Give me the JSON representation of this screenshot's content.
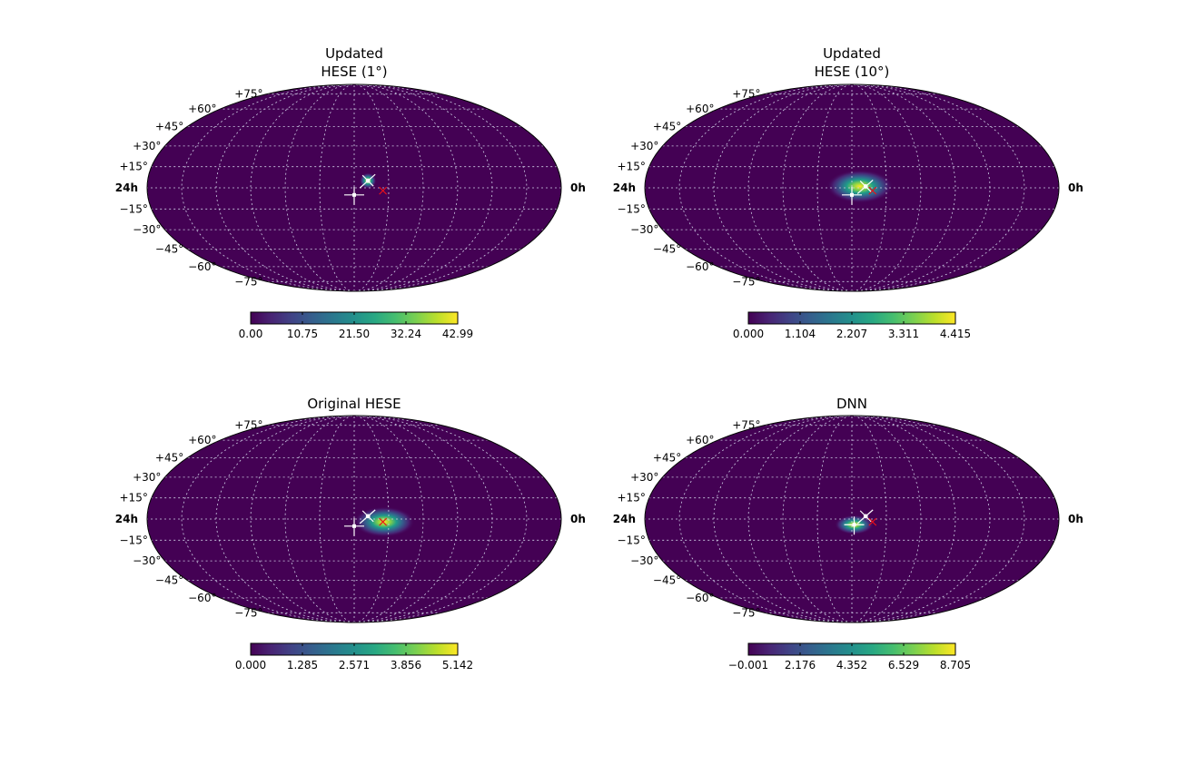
{
  "chart_data": [
    {
      "type": "heatmap",
      "projection": "mollweide",
      "title": [
        "Updated",
        "HESE (1°)"
      ],
      "colormap": "viridis",
      "colorbar": {
        "min": 0.0,
        "max": 42.99,
        "ticks": [
          "0.00",
          "10.75",
          "21.50",
          "32.24",
          "42.99"
        ]
      },
      "lat_ticks": [
        "+75°",
        "+60°",
        "+45°",
        "+30°",
        "+15°",
        "−15°",
        "−30°",
        "−45°",
        "−60°",
        "−75°"
      ],
      "ra_labels": {
        "left": "24h",
        "right": "0h"
      },
      "hotspot": {
        "ra_deg": 168,
        "dec_deg": 5,
        "sigma_deg": 1.5,
        "peak": 42.99
      },
      "markers": {
        "white_plus": {
          "ra_deg": 180,
          "dec_deg": -5
        },
        "white_dot": {
          "ra_deg": 168,
          "dec_deg": 5
        },
        "red_x": {
          "ra_deg": 155,
          "dec_deg": -2
        }
      },
      "grid": true
    },
    {
      "type": "heatmap",
      "projection": "mollweide",
      "title": [
        "Updated",
        "HESE (10°)"
      ],
      "colormap": "viridis",
      "colorbar": {
        "min": 0.0,
        "max": 4.415,
        "ticks": [
          "0.000",
          "1.104",
          "2.207",
          "3.311",
          "4.415"
        ]
      },
      "lat_ticks": [
        "+75°",
        "+60°",
        "+45°",
        "+30°",
        "+15°",
        "−15°",
        "−30°",
        "−45°",
        "−60°",
        "−75°"
      ],
      "ra_labels": {
        "left": "24h",
        "right": "0h"
      },
      "hotspot": {
        "ra_deg": 173,
        "dec_deg": 1,
        "sigma_deg": 6,
        "peak": 4.415
      },
      "markers": {
        "white_plus": {
          "ra_deg": 180,
          "dec_deg": -5
        },
        "white_dot": {
          "ra_deg": 168,
          "dec_deg": 1
        },
        "red_x": {
          "ra_deg": 162,
          "dec_deg": -2
        }
      },
      "grid": true
    },
    {
      "type": "heatmap",
      "projection": "mollweide",
      "title": [
        "Original HESE"
      ],
      "colormap": "viridis",
      "colorbar": {
        "min": 0.0,
        "max": 5.142,
        "ticks": [
          "0.000",
          "1.285",
          "2.571",
          "3.856",
          "5.142"
        ]
      },
      "lat_ticks": [
        "+75°",
        "+60°",
        "+45°",
        "+30°",
        "+15°",
        "−15°",
        "−30°",
        "−45°",
        "−60°",
        "−75°"
      ],
      "ra_labels": {
        "left": "24h",
        "right": "0h"
      },
      "hotspot": {
        "ra_deg": 154,
        "dec_deg": -2,
        "sigma_deg": 5.5,
        "peak": 5.142
      },
      "markers": {
        "white_plus": {
          "ra_deg": 180,
          "dec_deg": -5
        },
        "white_dot": {
          "ra_deg": 168,
          "dec_deg": 2
        },
        "red_x": {
          "ra_deg": 155,
          "dec_deg": -2
        }
      },
      "grid": true
    },
    {
      "type": "heatmap",
      "projection": "mollweide",
      "title": [
        "DNN"
      ],
      "colormap": "viridis",
      "colorbar": {
        "min": -0.001,
        "max": 8.705,
        "ticks": [
          "−0.001",
          "2.176",
          "4.352",
          "6.529",
          "8.705"
        ]
      },
      "lat_ticks": [
        "+75°",
        "+60°",
        "+45°",
        "+30°",
        "+15°",
        "−15°",
        "−30°",
        "−45°",
        "−60°",
        "−75°"
      ],
      "ra_labels": {
        "left": "24h",
        "right": "0h"
      },
      "hotspot": {
        "ra_deg": 178,
        "dec_deg": -4,
        "sigma_deg": 3.5,
        "peak": 8.705
      },
      "markers": {
        "white_plus": {
          "ra_deg": 178,
          "dec_deg": -4
        },
        "white_dot": {
          "ra_deg": 168,
          "dec_deg": 2
        },
        "red_x": {
          "ra_deg": 162,
          "dec_deg": -2
        }
      },
      "grid": true
    }
  ]
}
